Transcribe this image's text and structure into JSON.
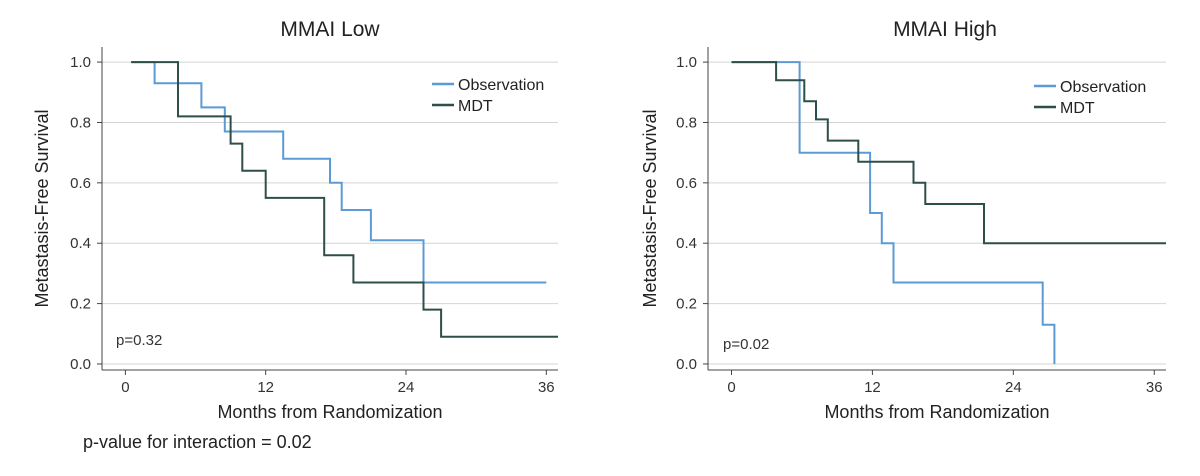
{
  "chart_data": [
    {
      "type": "line",
      "title": "MMAI Low",
      "xlabel": "Months from Randomization",
      "ylabel": "Metastasis-Free Survival",
      "xlim": [
        -2,
        37
      ],
      "ylim": [
        -0.02,
        1.05
      ],
      "xticks": [
        0,
        12,
        24,
        36
      ],
      "yticks": [
        0.0,
        0.2,
        0.4,
        0.6,
        0.8,
        1.0
      ],
      "ytick_labels": [
        "0.0",
        "0.2",
        "0.4",
        "0.6",
        "0.8",
        "1.0"
      ],
      "grid": "horizontal",
      "legend_position": "top-right",
      "annotation": "p=0.32",
      "series": [
        {
          "name": "Observation",
          "color": "#5b9bd5",
          "x": [
            0.5,
            2.5,
            2.5,
            4.5,
            4.5,
            6.5,
            6.5,
            8.5,
            8.5,
            13.5,
            13.5,
            17.5,
            17.5,
            18.5,
            18.5,
            21.0,
            21.0,
            25.5,
            25.5,
            36.0
          ],
          "y": [
            1.0,
            1.0,
            0.93,
            0.93,
            0.93,
            0.93,
            0.85,
            0.85,
            0.77,
            0.77,
            0.68,
            0.68,
            0.6,
            0.6,
            0.51,
            0.51,
            0.41,
            0.41,
            0.27,
            0.27
          ]
        },
        {
          "name": "MDT",
          "color": "#2e4e49",
          "x": [
            0.5,
            4.5,
            4.5,
            9.0,
            9.0,
            10.0,
            10.0,
            12.0,
            12.0,
            17.0,
            17.0,
            19.5,
            19.5,
            25.5,
            25.5,
            27.0,
            27.0,
            37.0
          ],
          "y": [
            1.0,
            1.0,
            0.82,
            0.82,
            0.73,
            0.73,
            0.64,
            0.64,
            0.55,
            0.55,
            0.36,
            0.36,
            0.27,
            0.27,
            0.18,
            0.18,
            0.09,
            0.09
          ]
        }
      ]
    },
    {
      "type": "line",
      "title": "MMAI High",
      "xlabel": "Months from Randomization",
      "ylabel": "Metastasis-Free Survival",
      "xlim": [
        -2,
        37
      ],
      "ylim": [
        -0.02,
        1.05
      ],
      "xticks": [
        0,
        12,
        24,
        36
      ],
      "yticks": [
        0.0,
        0.2,
        0.4,
        0.6,
        0.8,
        1.0
      ],
      "ytick_labels": [
        "0.0",
        "0.2",
        "0.4",
        "0.6",
        "0.8",
        "1.0"
      ],
      "grid": "horizontal",
      "legend_position": "top-right",
      "annotation": "p=0.02",
      "series": [
        {
          "name": "Observation",
          "color": "#5b9bd5",
          "x": [
            0,
            5.8,
            5.8,
            11.8,
            11.8,
            12.8,
            12.8,
            13.8,
            13.8,
            26.5,
            26.5,
            27.5,
            27.5
          ],
          "y": [
            1.0,
            1.0,
            0.7,
            0.7,
            0.5,
            0.5,
            0.4,
            0.4,
            0.27,
            0.27,
            0.13,
            0.13,
            0.0
          ]
        },
        {
          "name": "MDT",
          "color": "#2e4e49",
          "x": [
            0,
            3.8,
            3.8,
            6.2,
            6.2,
            7.2,
            7.2,
            8.2,
            8.2,
            10.8,
            10.8,
            15.5,
            15.5,
            16.5,
            16.5,
            21.5,
            21.5,
            35.5,
            35.5,
            37.0
          ],
          "y": [
            1.0,
            1.0,
            0.94,
            0.94,
            0.87,
            0.87,
            0.81,
            0.81,
            0.74,
            0.74,
            0.67,
            0.67,
            0.6,
            0.6,
            0.53,
            0.53,
            0.4,
            0.4,
            0.4,
            0.4
          ]
        }
      ]
    }
  ],
  "footnote": "p-value for interaction = 0.02"
}
